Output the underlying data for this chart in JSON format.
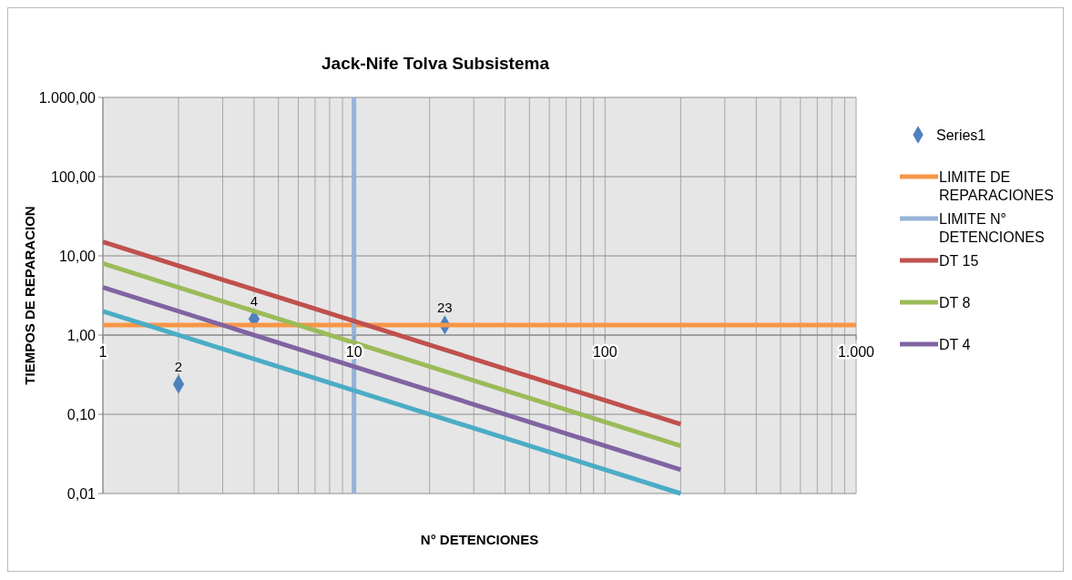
{
  "chart_data": {
    "type": "line",
    "title": "Jack-Nife Tolva Subsistema",
    "xlabel": "N° DETENCIONES",
    "ylabel": "TIEMPOS DE REPARACION",
    "log": "xy",
    "grid": true,
    "legend": "right",
    "xlim": [
      1,
      1000
    ],
    "ylim": [
      0.01,
      1000
    ],
    "xticks": [
      {
        "value": 1,
        "label": "1"
      },
      {
        "value": 2,
        "label": null
      },
      {
        "value": 3,
        "label": null
      },
      {
        "value": 4,
        "label": null
      },
      {
        "value": 5,
        "label": null
      },
      {
        "value": 6,
        "label": null
      },
      {
        "value": 7,
        "label": null
      },
      {
        "value": 8,
        "label": null
      },
      {
        "value": 9,
        "label": null
      },
      {
        "value": 10,
        "label": "10"
      },
      {
        "value": 20,
        "label": null
      },
      {
        "value": 30,
        "label": null
      },
      {
        "value": 40,
        "label": null
      },
      {
        "value": 50,
        "label": null
      },
      {
        "value": 60,
        "label": null
      },
      {
        "value": 70,
        "label": null
      },
      {
        "value": 80,
        "label": null
      },
      {
        "value": 90,
        "label": null
      },
      {
        "value": 100,
        "label": "100"
      },
      {
        "value": 200,
        "label": null
      },
      {
        "value": 300,
        "label": null
      },
      {
        "value": 400,
        "label": null
      },
      {
        "value": 500,
        "label": null
      },
      {
        "value": 600,
        "label": null
      },
      {
        "value": 700,
        "label": null
      },
      {
        "value": 800,
        "label": null
      },
      {
        "value": 900,
        "label": null
      },
      {
        "value": 1000,
        "label": "1.000"
      }
    ],
    "yticks": [
      {
        "value": 0.01,
        "label": "0,01"
      },
      {
        "value": 0.1,
        "label": "0,10"
      },
      {
        "value": 1,
        "label": "1,00"
      },
      {
        "value": 10,
        "label": "10,00"
      },
      {
        "value": 100,
        "label": "100,00"
      },
      {
        "value": 1000,
        "label": "1.000,00"
      }
    ],
    "annotations": [
      {
        "text": "2",
        "x": 2,
        "y": 0.24
      },
      {
        "text": "4",
        "x": 4,
        "y": 1.6
      },
      {
        "text": "23",
        "x": 23,
        "y": 1.34
      }
    ],
    "series": [
      {
        "name": "Series1",
        "type": "scatter",
        "marker": "diamond",
        "color": "#4f81bd",
        "x": [
          2,
          4,
          23
        ],
        "values": [
          0.24,
          1.6,
          1.34
        ]
      },
      {
        "name": "LIMITE DE REPARACIONES",
        "color": "#f79646",
        "x": [
          1,
          1000
        ],
        "values": [
          1.34,
          1.34
        ]
      },
      {
        "name": "LIMITE N° DETENCIONES",
        "color": "#95b3d7",
        "x": [
          10,
          10
        ],
        "values": [
          0.01,
          1000
        ]
      },
      {
        "name": "DT 15",
        "color": "#c0504d",
        "x": [
          1,
          200
        ],
        "values": [
          15,
          0.075
        ]
      },
      {
        "name": "DT 8",
        "color": "#9bbb59",
        "x": [
          1,
          200
        ],
        "values": [
          8,
          0.04
        ]
      },
      {
        "name": "DT 4",
        "color": "#8064a2",
        "x": [
          1,
          200
        ],
        "values": [
          4,
          0.02
        ]
      },
      {
        "color": "#4bacc6",
        "x": [
          1,
          200
        ],
        "values": [
          2,
          0.01
        ]
      }
    ]
  }
}
